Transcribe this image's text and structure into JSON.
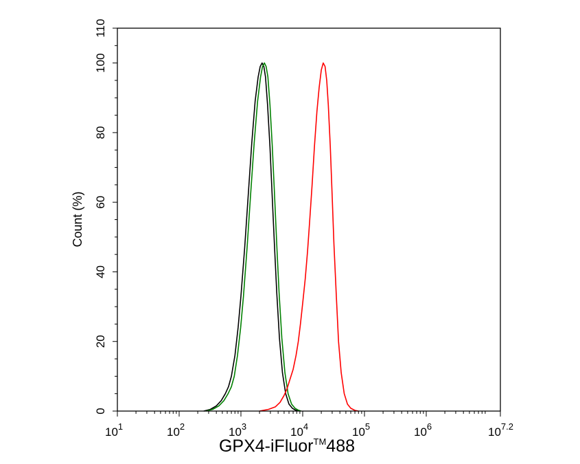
{
  "chart_data": {
    "type": "line",
    "title": "",
    "xlabel": "GPX4-iFluor™488",
    "xlabel_parts": {
      "main": "GPX4-iFluor",
      "sup": "TM",
      "tail": "488"
    },
    "ylabel": "Count  (%)",
    "x_scale": "log",
    "xlim": [
      10,
      15848932
    ],
    "ylim": [
      0,
      110
    ],
    "x_ticks": [
      {
        "base": "10",
        "exp": "1"
      },
      {
        "base": "10",
        "exp": "2"
      },
      {
        "base": "10",
        "exp": "3"
      },
      {
        "base": "10",
        "exp": "4"
      },
      {
        "base": "10",
        "exp": "5"
      },
      {
        "base": "10",
        "exp": "6"
      },
      {
        "base": "10",
        "exp": "7.2"
      }
    ],
    "y_ticks": [
      0,
      20,
      40,
      60,
      80,
      100,
      110
    ],
    "grid": false,
    "legend": "none",
    "series": [
      {
        "color": "#000000",
        "points": [
          [
            250,
            0
          ],
          [
            320,
            0.5
          ],
          [
            400,
            1.5
          ],
          [
            480,
            3
          ],
          [
            560,
            5
          ],
          [
            630,
            7
          ],
          [
            700,
            10
          ],
          [
            800,
            16
          ],
          [
            900,
            24
          ],
          [
            1000,
            33
          ],
          [
            1150,
            47
          ],
          [
            1300,
            61
          ],
          [
            1500,
            77
          ],
          [
            1700,
            89
          ],
          [
            1900,
            96
          ],
          [
            2050,
            99
          ],
          [
            2200,
            100
          ],
          [
            2350,
            99
          ],
          [
            2500,
            96
          ],
          [
            2700,
            88
          ],
          [
            2950,
            76
          ],
          [
            3200,
            62
          ],
          [
            3500,
            47
          ],
          [
            3800,
            34
          ],
          [
            4200,
            21
          ],
          [
            4700,
            11
          ],
          [
            5300,
            5
          ],
          [
            6000,
            2
          ],
          [
            6800,
            0.8
          ],
          [
            7600,
            0.3
          ],
          [
            8500,
            0
          ]
        ]
      },
      {
        "color": "#008000",
        "points": [
          [
            270,
            0
          ],
          [
            350,
            0.5
          ],
          [
            440,
            1.5
          ],
          [
            530,
            3
          ],
          [
            620,
            5
          ],
          [
            700,
            7
          ],
          [
            780,
            10
          ],
          [
            880,
            16
          ],
          [
            990,
            24
          ],
          [
            1100,
            33
          ],
          [
            1260,
            47
          ],
          [
            1420,
            61
          ],
          [
            1640,
            77
          ],
          [
            1860,
            89
          ],
          [
            2080,
            96
          ],
          [
            2240,
            99
          ],
          [
            2400,
            100
          ],
          [
            2560,
            99
          ],
          [
            2730,
            96
          ],
          [
            2950,
            88
          ],
          [
            3220,
            76
          ],
          [
            3500,
            62
          ],
          [
            3820,
            47
          ],
          [
            4150,
            34
          ],
          [
            4600,
            21
          ],
          [
            5150,
            11
          ],
          [
            5800,
            5
          ],
          [
            6600,
            2
          ],
          [
            7500,
            0.8
          ],
          [
            8400,
            0.3
          ],
          [
            9400,
            0
          ]
        ]
      },
      {
        "color": "#ff0000",
        "points": [
          [
            2000,
            0
          ],
          [
            2800,
            0.5
          ],
          [
            3600,
            1.2
          ],
          [
            4300,
            2.5
          ],
          [
            5000,
            4.5
          ],
          [
            5600,
            6.5
          ],
          [
            6200,
            9
          ],
          [
            7000,
            12
          ],
          [
            7800,
            16
          ],
          [
            8500,
            20
          ],
          [
            9200,
            25
          ],
          [
            10000,
            31
          ],
          [
            11000,
            38
          ],
          [
            12000,
            46
          ],
          [
            13000,
            55
          ],
          [
            14200,
            65
          ],
          [
            15500,
            76
          ],
          [
            17000,
            86
          ],
          [
            18500,
            93
          ],
          [
            20000,
            98
          ],
          [
            21500,
            100
          ],
          [
            23000,
            99
          ],
          [
            24500,
            95
          ],
          [
            26000,
            88
          ],
          [
            28000,
            76
          ],
          [
            30000,
            62
          ],
          [
            32000,
            48
          ],
          [
            35000,
            33
          ],
          [
            38000,
            20
          ],
          [
            42000,
            11
          ],
          [
            47000,
            5
          ],
          [
            53000,
            2
          ],
          [
            60000,
            0.8
          ],
          [
            70000,
            0.2
          ],
          [
            80000,
            0
          ]
        ]
      }
    ]
  }
}
